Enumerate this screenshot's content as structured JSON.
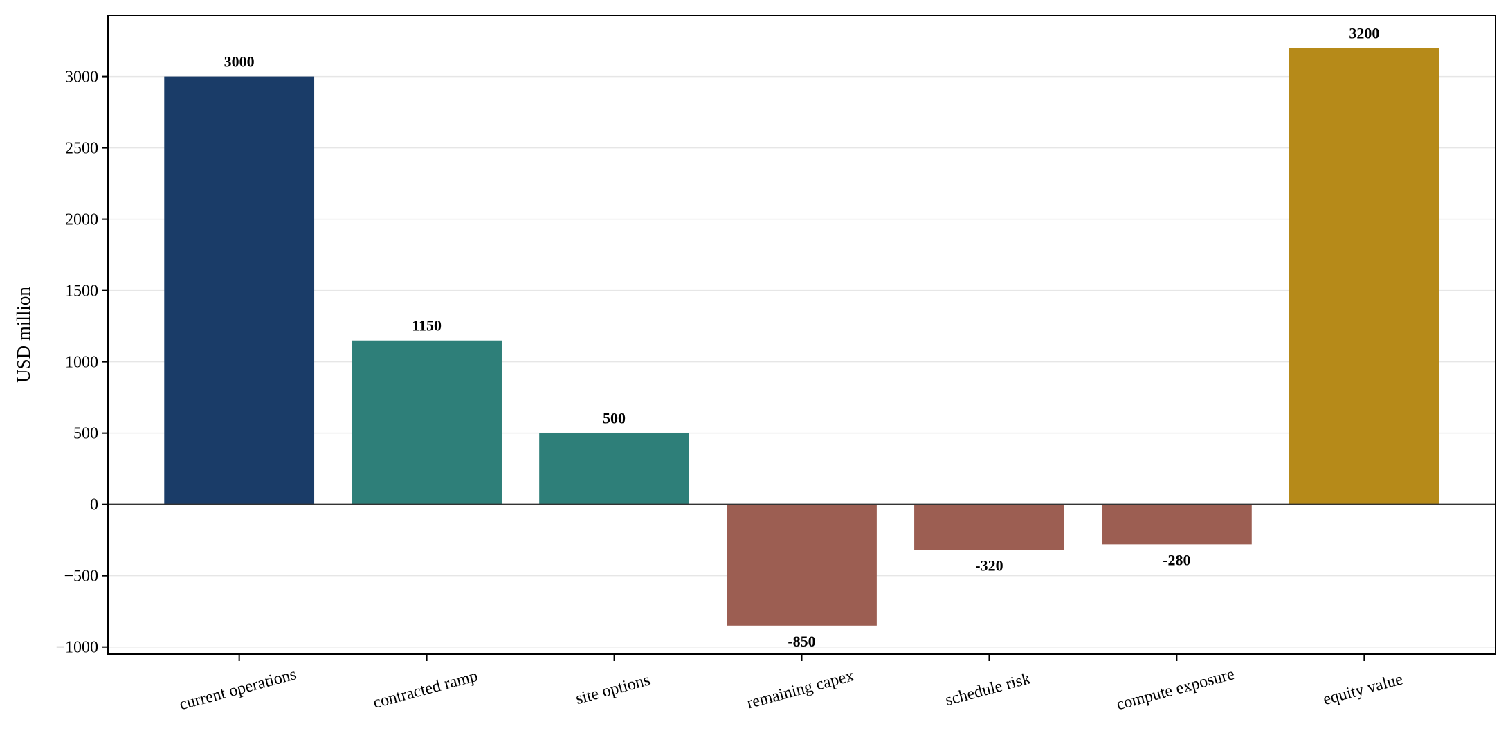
{
  "chart_data": {
    "type": "bar",
    "categories": [
      "current operations",
      "contracted ramp",
      "site options",
      "remaining capex",
      "schedule risk",
      "compute exposure",
      "equity value"
    ],
    "values": [
      3000,
      1150,
      500,
      -850,
      -320,
      -280,
      3200
    ],
    "data_labels": [
      "3000",
      "1150",
      "500",
      "-850",
      "-320",
      "-280",
      "3200"
    ],
    "bar_colors": [
      "#1a3c68",
      "#2e7f79",
      "#2e7f79",
      "#9c5e52",
      "#9c5e52",
      "#9c5e52",
      "#b68a19"
    ],
    "title": "",
    "xlabel": "",
    "ylabel": "USD million",
    "ylim": [
      -1050,
      3430
    ],
    "yticks": [
      -1000,
      -500,
      0,
      500,
      1000,
      1500,
      2000,
      2500,
      3000
    ],
    "ytick_labels": [
      "−1000",
      "−500",
      "0",
      "500",
      "1000",
      "1500",
      "2000",
      "2500",
      "3000"
    ],
    "grid": true,
    "grid_axis": "y",
    "zero_line": true,
    "legend": "none"
  }
}
